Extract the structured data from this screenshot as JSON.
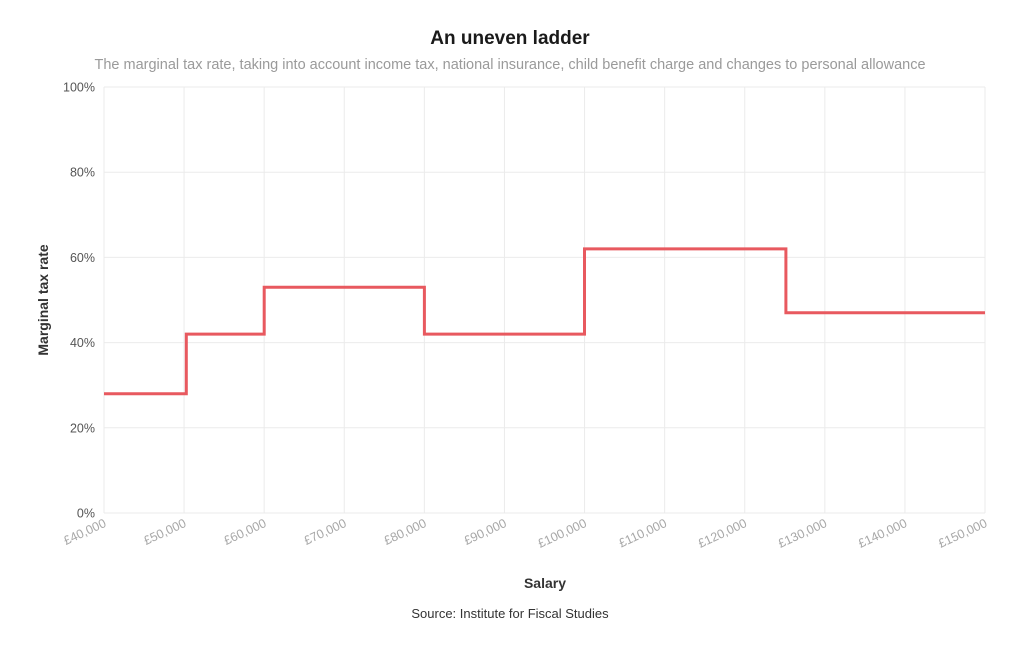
{
  "title": "An uneven ladder",
  "subtitle": "The marginal tax rate, taking into account income tax, national insurance, child benefit charge and changes to personal allowance",
  "source": "Source: Institute for Fiscal Studies",
  "colors": {
    "line": "#e8595f",
    "grid": "#ebebeb"
  },
  "chart_data": {
    "type": "line",
    "step": true,
    "title": "An uneven ladder",
    "subtitle": "The marginal tax rate, taking into account income tax, national insurance, child benefit charge and changes to personal allowance",
    "xlabel": "Salary",
    "ylabel": "Marginal tax rate",
    "xlim": [
      40000,
      150000
    ],
    "ylim": [
      0,
      100
    ],
    "grid": true,
    "x_ticks": [
      40000,
      50000,
      60000,
      70000,
      80000,
      90000,
      100000,
      110000,
      120000,
      130000,
      140000,
      150000
    ],
    "x_tick_labels": [
      "£40,000",
      "£50,000",
      "£60,000",
      "£70,000",
      "£80,000",
      "£90,000",
      "£100,000",
      "£110,000",
      "£120,000",
      "£130,000",
      "£140,000",
      "£150,000"
    ],
    "y_ticks": [
      0,
      20,
      40,
      60,
      80,
      100
    ],
    "y_tick_labels": [
      "0%",
      "20%",
      "40%",
      "60%",
      "80%",
      "100%"
    ],
    "series": [
      {
        "color": "#e8595f",
        "x": [
          40000,
          50270,
          50270,
          60000,
          60000,
          80000,
          80000,
          100000,
          100000,
          125140,
          125140,
          150000
        ],
        "y": [
          28,
          28,
          42,
          42,
          53,
          53,
          42,
          42,
          62,
          62,
          47,
          47
        ]
      }
    ]
  }
}
